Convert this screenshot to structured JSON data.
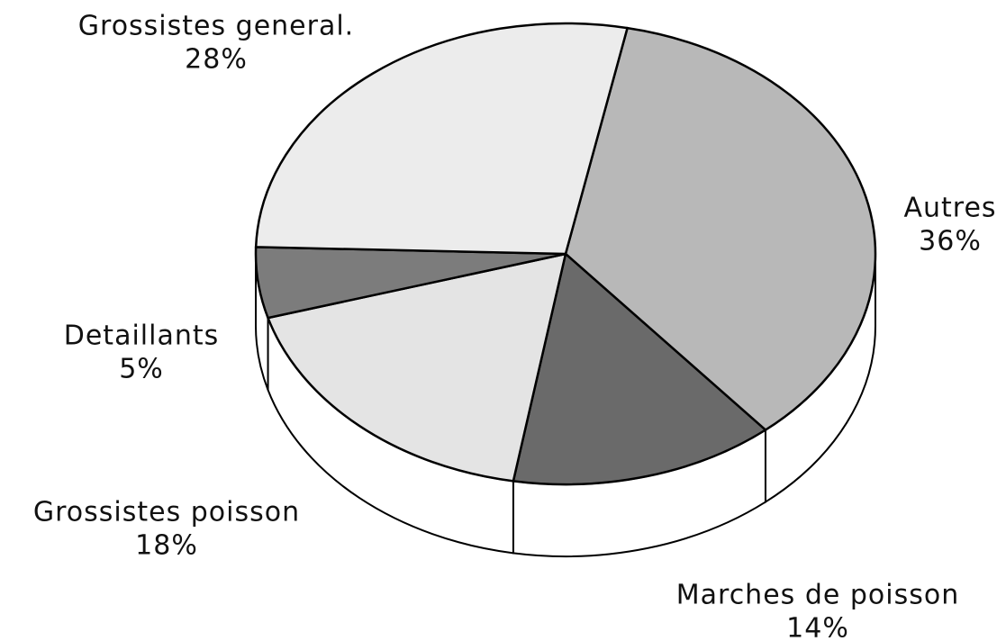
{
  "chart_data": {
    "type": "pie",
    "categories": [
      "Autres",
      "Marches de poisson",
      "Grossistes poisson",
      "Detaillants",
      "Grossistes general."
    ],
    "values": [
      36,
      14,
      18,
      5,
      28
    ],
    "value_labels": [
      "36%",
      "14%",
      "18%",
      "5%",
      "28%"
    ],
    "colors": [
      "#b8b8b8",
      "#6a6a6a",
      "#e4e4e4",
      "#7c7c7c",
      "#ececec"
    ]
  }
}
